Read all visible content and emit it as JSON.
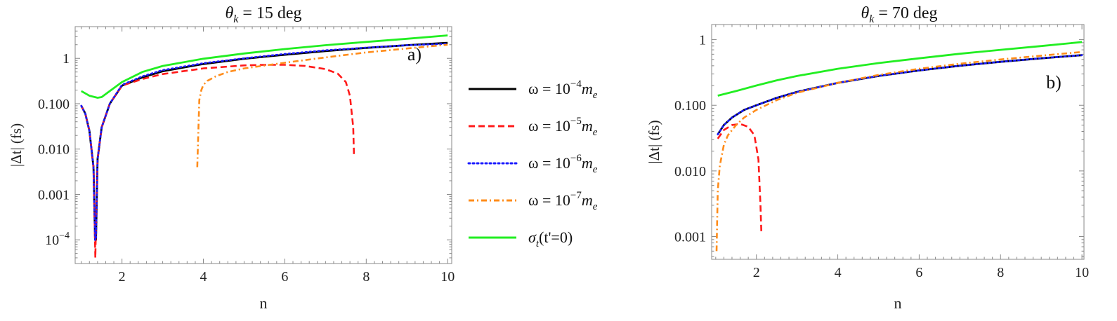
{
  "chart_data": [
    {
      "type": "line",
      "title": "θ_k = 15 deg",
      "title_parts": {
        "symbol": "θ",
        "sub": "k",
        "rest": " = 15 deg"
      },
      "panel_label": "a)",
      "xlabel": "n",
      "ylabel": "|Δt| (fs)",
      "xlim": [
        0.85,
        10.1
      ],
      "ylim": [
        3e-05,
        5
      ],
      "yscale": "log",
      "xticks": [
        2,
        4,
        6,
        8,
        10
      ],
      "yticks": [
        {
          "value": 1,
          "label": "1"
        },
        {
          "value": 0.1,
          "label": "0.100"
        },
        {
          "value": 0.01,
          "label": "0.010"
        },
        {
          "value": 0.001,
          "label": "0.001"
        },
        {
          "value": 0.0001,
          "label": "10",
          "exp": "−4"
        }
      ],
      "grid": false,
      "series": [
        {
          "key": "w4",
          "color": "#000000",
          "dash": "solid",
          "x": [
            1.0,
            1.1,
            1.2,
            1.3,
            1.34,
            1.36,
            1.4,
            1.5,
            1.7,
            2.0,
            2.5,
            3.0,
            4.0,
            5.0,
            6.0,
            7.0,
            8.0,
            9.0,
            10.0
          ],
          "y": [
            0.09,
            0.06,
            0.025,
            0.004,
            0.0001,
            0.0001,
            0.006,
            0.03,
            0.1,
            0.25,
            0.38,
            0.52,
            0.75,
            0.98,
            1.2,
            1.45,
            1.7,
            1.95,
            2.2
          ]
        },
        {
          "key": "w5",
          "color": "#ff1a1a",
          "dash": "dashed",
          "x": [
            1.0,
            1.1,
            1.2,
            1.3,
            1.345,
            1.36,
            1.4,
            1.5,
            1.7,
            2.0,
            2.5,
            3.0,
            4.0,
            5.0,
            5.5,
            6.0,
            6.5,
            7.0,
            7.3,
            7.5,
            7.6,
            7.68,
            7.7
          ],
          "y": [
            0.09,
            0.06,
            0.025,
            0.004,
            4e-05,
            0.0002,
            0.006,
            0.03,
            0.1,
            0.25,
            0.35,
            0.45,
            0.6,
            0.7,
            0.72,
            0.72,
            0.68,
            0.58,
            0.46,
            0.3,
            0.15,
            0.03,
            0.007
          ]
        },
        {
          "key": "w6",
          "color": "#1a1aff",
          "dash": "dotted",
          "x": [
            1.0,
            1.1,
            1.2,
            1.3,
            1.34,
            1.36,
            1.4,
            1.5,
            1.7,
            2.0,
            2.5,
            3.0,
            4.0,
            5.0,
            6.0,
            7.0,
            8.0,
            9.0,
            10.0
          ],
          "y": [
            0.09,
            0.06,
            0.025,
            0.004,
            0.0001,
            0.0001,
            0.006,
            0.03,
            0.1,
            0.26,
            0.4,
            0.55,
            0.78,
            1.0,
            1.25,
            1.5,
            1.72,
            1.95,
            2.1
          ]
        },
        {
          "key": "w7",
          "color": "#ff8c1a",
          "dash": "dashdot",
          "x": [
            3.85,
            3.9,
            3.95,
            4.0,
            4.1,
            4.3,
            4.6,
            5.0,
            6.0,
            7.0,
            8.0,
            9.0,
            10.0
          ],
          "y": [
            0.004,
            0.12,
            0.2,
            0.26,
            0.32,
            0.4,
            0.5,
            0.6,
            0.8,
            1.05,
            1.35,
            1.65,
            2.0
          ]
        },
        {
          "key": "sigma",
          "color": "#22ee22",
          "dash": "solid",
          "x": [
            1.0,
            1.2,
            1.4,
            1.5,
            1.7,
            2.0,
            2.5,
            3.0,
            4.0,
            5.0,
            6.0,
            7.0,
            8.0,
            9.0,
            10.0
          ],
          "y": [
            0.19,
            0.15,
            0.135,
            0.14,
            0.19,
            0.3,
            0.5,
            0.68,
            0.98,
            1.28,
            1.6,
            1.95,
            2.3,
            2.7,
            3.2
          ]
        }
      ]
    },
    {
      "type": "line",
      "title": "θ_k = 70 deg",
      "title_parts": {
        "symbol": "θ",
        "sub": "k",
        "rest": " = 70 deg"
      },
      "panel_label": "b)",
      "xlabel": "n",
      "ylabel": "|Δt| (fs)",
      "xlim": [
        0.9,
        10.05
      ],
      "ylim": [
        0.00045,
        1.7
      ],
      "yscale": "log",
      "xticks": [
        2,
        4,
        6,
        8,
        10
      ],
      "yticks": [
        {
          "value": 1,
          "label": "1"
        },
        {
          "value": 0.1,
          "label": "0.100"
        },
        {
          "value": 0.01,
          "label": "0.010"
        },
        {
          "value": 0.001,
          "label": "0.001"
        }
      ],
      "grid": false,
      "series": [
        {
          "key": "w4",
          "color": "#000000",
          "dash": "solid",
          "x": [
            1.05,
            1.2,
            1.4,
            1.7,
            2.0,
            2.5,
            3.0,
            4.0,
            5.0,
            6.0,
            7.0,
            8.0,
            9.0,
            10.0
          ],
          "y": [
            0.036,
            0.05,
            0.065,
            0.085,
            0.1,
            0.13,
            0.16,
            0.22,
            0.28,
            0.34,
            0.4,
            0.46,
            0.52,
            0.58
          ]
        },
        {
          "key": "w5",
          "color": "#ff1a1a",
          "dash": "dashed",
          "x": [
            1.05,
            1.2,
            1.4,
            1.6,
            1.8,
            1.95,
            2.05,
            2.1,
            2.12
          ],
          "y": [
            0.031,
            0.042,
            0.05,
            0.052,
            0.047,
            0.035,
            0.015,
            0.003,
            0.0012
          ]
        },
        {
          "key": "w6",
          "color": "#1a1aff",
          "dash": "dotted",
          "x": [
            1.05,
            1.2,
            1.4,
            1.7,
            2.0,
            2.5,
            3.0,
            4.0,
            5.0,
            6.0,
            7.0,
            8.0,
            9.0,
            10.0
          ],
          "y": [
            0.036,
            0.05,
            0.065,
            0.085,
            0.1,
            0.13,
            0.16,
            0.22,
            0.28,
            0.34,
            0.4,
            0.46,
            0.52,
            0.58
          ]
        },
        {
          "key": "w7",
          "color": "#ff8c1a",
          "dash": "dashdot",
          "x": [
            1.02,
            1.05,
            1.1,
            1.2,
            1.3,
            1.5,
            1.7,
            2.0,
            2.5,
            3.0,
            4.0,
            5.0,
            6.0,
            7.0,
            8.0,
            9.0,
            10.0
          ],
          "y": [
            0.0006,
            0.005,
            0.012,
            0.025,
            0.035,
            0.05,
            0.065,
            0.085,
            0.12,
            0.155,
            0.22,
            0.29,
            0.36,
            0.43,
            0.5,
            0.57,
            0.65
          ]
        },
        {
          "key": "sigma",
          "color": "#22ee22",
          "dash": "solid",
          "x": [
            1.05,
            1.5,
            2.0,
            2.5,
            3.0,
            4.0,
            5.0,
            6.0,
            7.0,
            8.0,
            9.0,
            10.0
          ],
          "y": [
            0.14,
            0.165,
            0.2,
            0.24,
            0.28,
            0.36,
            0.44,
            0.52,
            0.61,
            0.7,
            0.8,
            0.92
          ]
        }
      ]
    }
  ],
  "legend": {
    "entries": [
      {
        "key": "w4",
        "color": "#000000",
        "dash": "solid",
        "pre": "ω = 10",
        "sup": "−4",
        "post": "m",
        "sub": "e"
      },
      {
        "key": "w5",
        "color": "#ff1a1a",
        "dash": "dashed",
        "pre": "ω = 10",
        "sup": "−5",
        "post": "m",
        "sub": "e"
      },
      {
        "key": "w6",
        "color": "#1a1aff",
        "dash": "dotted",
        "pre": "ω = 10",
        "sup": "−6",
        "post": "m",
        "sub": "e"
      },
      {
        "key": "w7",
        "color": "#ff8c1a",
        "dash": "dashdot",
        "pre": "ω = 10",
        "sup": "−7",
        "post": "m",
        "sub": "e"
      },
      {
        "key": "sigma",
        "color": "#22ee22",
        "dash": "solid",
        "pre": "σ",
        "sub": "t",
        "post": "(t'=0)"
      }
    ]
  }
}
